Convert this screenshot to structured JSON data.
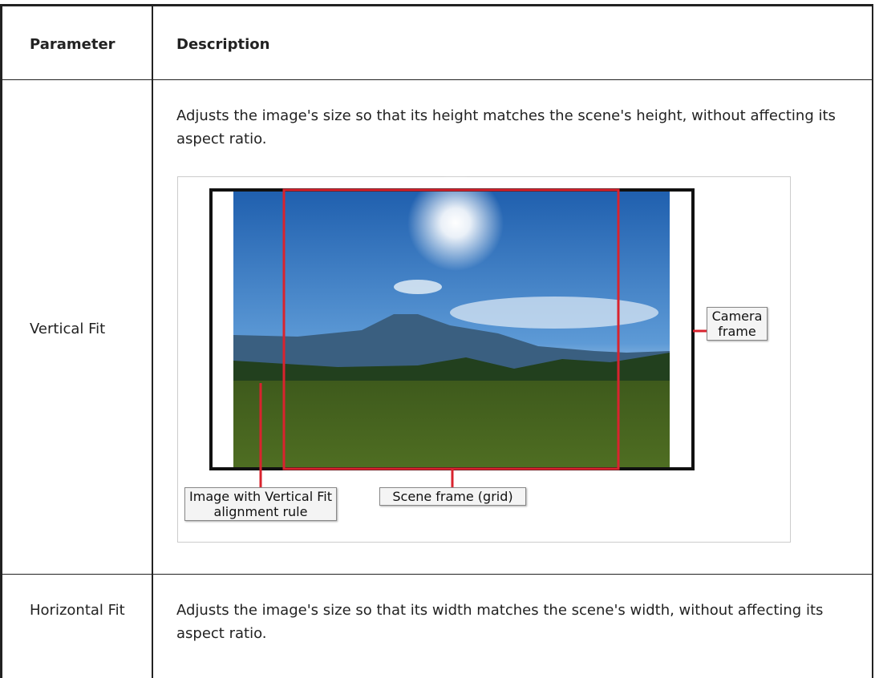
{
  "table": {
    "header": [
      "Parameter",
      "Description"
    ],
    "rows": [
      {
        "parameter": "Vertical Fit",
        "description": "Adjusts the image's size so that its height matches the scene's height, without affecting its aspect ratio.",
        "figure": {
          "callouts": [
            "Camera frame",
            "Image with Vertical Fit alignment rule",
            "Scene frame (grid)"
          ]
        }
      },
      {
        "parameter": "Horizontal Fit",
        "description": "Adjusts the image's size so that its width matches the scene's width, without affecting its aspect ratio."
      }
    ]
  }
}
